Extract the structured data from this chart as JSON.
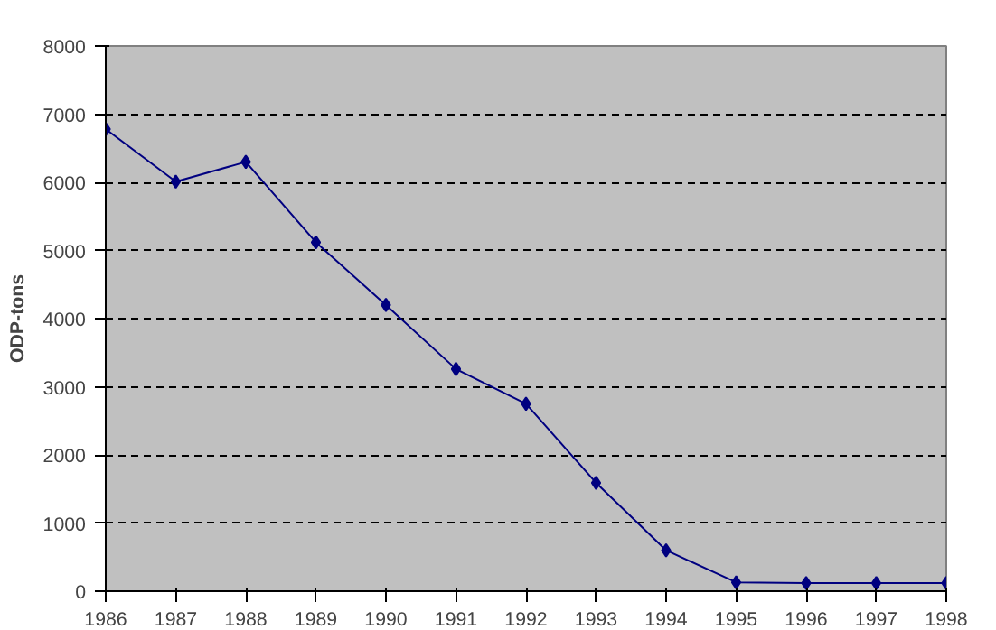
{
  "chart_data": {
    "type": "line",
    "ylabel": "ODP-tons",
    "x": [
      1986,
      1987,
      1988,
      1989,
      1990,
      1991,
      1992,
      1993,
      1994,
      1995,
      1996,
      1997,
      1998
    ],
    "series": [
      {
        "color": "#000080",
        "values": [
          6780,
          6010,
          6300,
          5120,
          4200,
          3260,
          2750,
          1590,
          600,
          130,
          120,
          120,
          120
        ]
      }
    ],
    "xlim": [
      1986,
      1998
    ],
    "xticks": [
      1986,
      1987,
      1988,
      1989,
      1990,
      1991,
      1992,
      1993,
      1994,
      1995,
      1996,
      1997,
      1998
    ],
    "ylim": [
      0,
      8000
    ],
    "yticks": [
      0,
      1000,
      2000,
      3000,
      4000,
      5000,
      6000,
      7000,
      8000
    ],
    "grid": "y",
    "marker": "diamond",
    "line_style": "solid"
  }
}
